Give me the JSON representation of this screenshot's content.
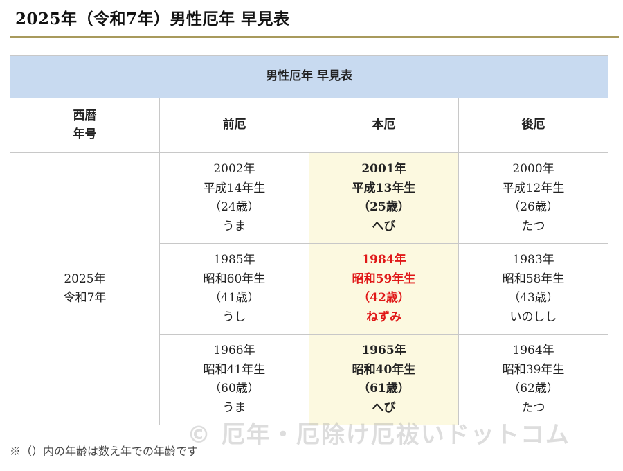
{
  "page": {
    "title": "2025年（令和7年）男性厄年 早見表",
    "note": "※（）内の年齢は数え年での年齢です",
    "watermark": "© 厄年・厄除け厄祓いドットコム"
  },
  "table": {
    "caption": "男性厄年 早見表",
    "headers": {
      "era_line1": "西暦",
      "era_line2": "年号",
      "mae": "前厄",
      "hon": "本厄",
      "ato": "後厄"
    },
    "era": {
      "year": "2025年",
      "name": "令和7年"
    },
    "rows": [
      {
        "mae": {
          "year": "2002年",
          "era": "平成14年生",
          "age": "（24歳）",
          "zodiac": "うま"
        },
        "hon": {
          "year": "2001年",
          "era": "平成13年生",
          "age": "（25歳）",
          "zodiac": "へび"
        },
        "ato": {
          "year": "2000年",
          "era": "平成12年生",
          "age": "（26歳）",
          "zodiac": "たつ"
        }
      },
      {
        "mae": {
          "year": "1985年",
          "era": "昭和60年生",
          "age": "（41歳）",
          "zodiac": "うし"
        },
        "hon": {
          "year": "1984年",
          "era": "昭和59年生",
          "age": "（42歳）",
          "zodiac": "ねずみ"
        },
        "ato": {
          "year": "1983年",
          "era": "昭和58年生",
          "age": "（43歳）",
          "zodiac": "いのしし"
        }
      },
      {
        "mae": {
          "year": "1966年",
          "era": "昭和41年生",
          "age": "（60歳）",
          "zodiac": "うま"
        },
        "hon": {
          "year": "1965年",
          "era": "昭和40年生",
          "age": "（61歳）",
          "zodiac": "へび"
        },
        "ato": {
          "year": "1964年",
          "era": "昭和39年生",
          "age": "（62歳）",
          "zodiac": "たつ"
        }
      }
    ]
  },
  "colors": {
    "caption_bg": "#c8daf0",
    "honyaku_bg": "#fcf9e0",
    "taiyaku_text": "#e01818",
    "title_rule": "#a89a5c"
  }
}
